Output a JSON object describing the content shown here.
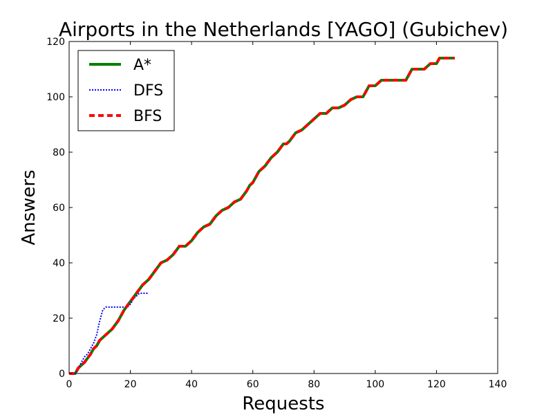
{
  "chart_data": {
    "type": "line",
    "title": "Airports in the Netherlands [YAGO] (Gubichev)",
    "xlabel": "Requests",
    "ylabel": "Answers",
    "xlim": [
      0,
      140
    ],
    "ylim": [
      0,
      120
    ],
    "xticks": [
      0,
      20,
      40,
      60,
      80,
      100,
      120,
      140
    ],
    "yticks": [
      0,
      20,
      40,
      60,
      80,
      100,
      120
    ],
    "grid": false,
    "legend_position": "top-left",
    "series": [
      {
        "name": "A*",
        "color": "#008000",
        "style": "solid",
        "x": [
          0,
          2,
          3,
          5,
          7,
          8,
          9,
          10,
          12,
          14,
          16,
          18,
          20,
          22,
          24,
          26,
          28,
          30,
          32,
          34,
          36,
          38,
          39,
          40,
          42,
          43,
          44,
          46,
          48,
          49,
          50,
          52,
          54,
          56,
          58,
          59,
          60,
          62,
          63,
          64,
          66,
          68,
          70,
          71,
          72,
          74,
          76,
          78,
          80,
          82,
          84,
          86,
          88,
          90,
          92,
          94,
          96,
          98,
          100,
          101,
          102,
          104,
          106,
          108,
          110,
          112,
          114,
          116,
          118,
          120,
          121,
          122,
          123,
          124,
          126
        ],
        "y": [
          0,
          0,
          2,
          4,
          7,
          9,
          10,
          12,
          14,
          16,
          19,
          23,
          26,
          29,
          32,
          34,
          37,
          40,
          41,
          43,
          46,
          46,
          47,
          48,
          51,
          52,
          53,
          54,
          57,
          58,
          59,
          60,
          62,
          63,
          66,
          68,
          69,
          73,
          74,
          75,
          78,
          80,
          83,
          83,
          84,
          87,
          88,
          90,
          92,
          94,
          94,
          96,
          96,
          97,
          99,
          100,
          100,
          104,
          104,
          105,
          106,
          106,
          106,
          106,
          106,
          110,
          110,
          110,
          112,
          112,
          114,
          114,
          114,
          114,
          114
        ]
      },
      {
        "name": "DFS",
        "color": "#0000ff",
        "style": "dotted",
        "x": [
          0,
          2,
          3,
          4,
          5,
          6,
          7,
          8,
          9,
          10,
          11,
          12,
          13,
          14,
          15,
          16,
          17,
          18,
          19,
          20,
          21,
          22,
          23,
          24,
          25,
          26
        ],
        "y": [
          0,
          0,
          2,
          4,
          6,
          7,
          9,
          11,
          14,
          19,
          23,
          24,
          24,
          24,
          24,
          24,
          24,
          24,
          24,
          25,
          27,
          28,
          29,
          29,
          29,
          29
        ]
      },
      {
        "name": "BFS",
        "color": "#ff0000",
        "style": "dashed",
        "x": [
          0,
          2,
          3,
          5,
          7,
          8,
          9,
          10,
          12,
          14,
          16,
          18,
          20,
          22,
          24,
          26,
          28,
          30,
          32,
          34,
          36,
          38,
          39,
          40,
          42,
          43,
          44,
          46,
          48,
          49,
          50,
          52,
          54,
          56,
          58,
          59,
          60,
          62,
          63,
          64,
          66,
          68,
          70,
          71,
          72,
          74,
          76,
          78,
          80,
          82,
          84,
          86,
          88,
          90,
          92,
          94,
          96,
          98,
          100,
          101,
          102,
          104,
          106,
          108,
          110,
          112,
          114,
          116,
          118,
          120,
          121,
          122,
          123,
          124,
          126
        ],
        "y": [
          0,
          0,
          2,
          4,
          7,
          9,
          10,
          12,
          14,
          16,
          19,
          23,
          26,
          29,
          32,
          34,
          37,
          40,
          41,
          43,
          46,
          46,
          47,
          48,
          51,
          52,
          53,
          54,
          57,
          58,
          59,
          60,
          62,
          63,
          66,
          68,
          69,
          73,
          74,
          75,
          78,
          80,
          83,
          83,
          84,
          87,
          88,
          90,
          92,
          94,
          94,
          96,
          96,
          97,
          99,
          100,
          100,
          104,
          104,
          105,
          106,
          106,
          106,
          106,
          106,
          110,
          110,
          110,
          112,
          112,
          114,
          114,
          114,
          114,
          114
        ]
      }
    ]
  }
}
